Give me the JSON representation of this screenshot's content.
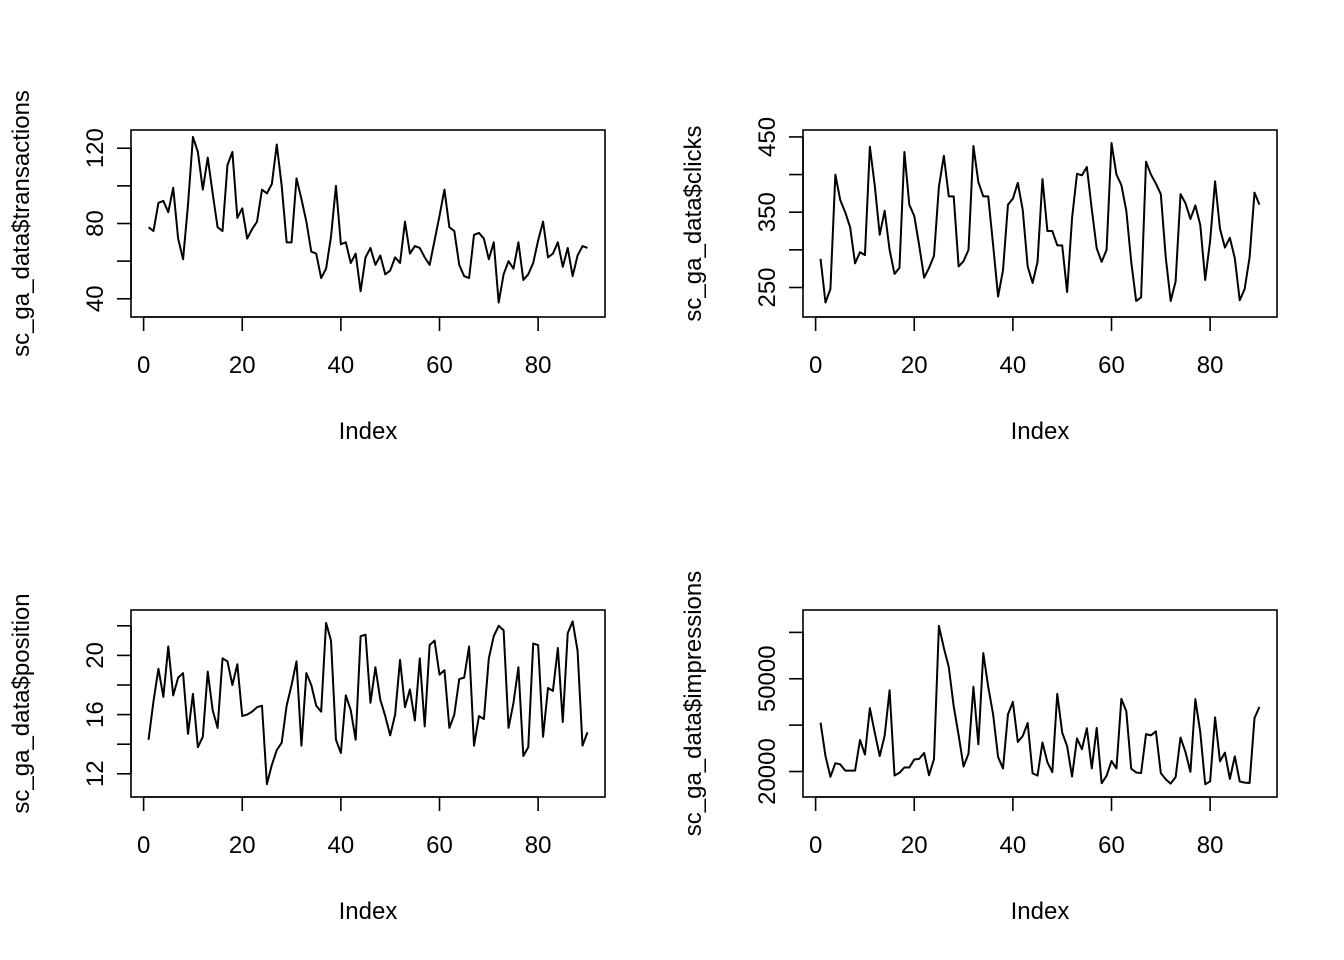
{
  "figure": {
    "layout": "2x2"
  },
  "chart_data": [
    {
      "type": "line",
      "title": "",
      "xlabel": "Index",
      "ylabel": "sc_ga_data$transactions",
      "xlim": [
        1,
        90
      ],
      "ylim": [
        34,
        126
      ],
      "xticks": [
        0,
        20,
        40,
        60,
        80
      ],
      "yticks": [
        40,
        80,
        120
      ],
      "yminor": [
        60,
        100
      ],
      "grid": false,
      "values": [
        78,
        76,
        91,
        92,
        86,
        99,
        72,
        61,
        90,
        126,
        118,
        98,
        115,
        96,
        78,
        76,
        111,
        118,
        83,
        88,
        72,
        77,
        81,
        98,
        96,
        101,
        122,
        100,
        70,
        70,
        104,
        93,
        81,
        65,
        64,
        51,
        56,
        73,
        100,
        69,
        70,
        59,
        64,
        44,
        62,
        67,
        58,
        63,
        53,
        55,
        62,
        59,
        81,
        64,
        68,
        67,
        62,
        58,
        71,
        84,
        98,
        78,
        76,
        58,
        52,
        51,
        74,
        75,
        72,
        61,
        70,
        38,
        53,
        60,
        56,
        70,
        50,
        53,
        59,
        71,
        81,
        62,
        64,
        70,
        57,
        67,
        52,
        63,
        68,
        67
      ]
    },
    {
      "type": "line",
      "title": "",
      "xlabel": "Index",
      "ylabel": "sc_ga_data$clicks",
      "xlim": [
        1,
        90
      ],
      "ylim": [
        220,
        450
      ],
      "xticks": [
        0,
        20,
        40,
        60,
        80
      ],
      "yticks": [
        250,
        350,
        450
      ],
      "yminor": [
        300,
        400
      ],
      "grid": false,
      "values": [
        288,
        230,
        248,
        400,
        366,
        350,
        330,
        282,
        297,
        293,
        437,
        385,
        320,
        352,
        300,
        268,
        276,
        430,
        360,
        345,
        306,
        263,
        276,
        292,
        384,
        425,
        371,
        371,
        278,
        285,
        300,
        438,
        390,
        371,
        371,
        306,
        238,
        273,
        360,
        368,
        389,
        353,
        278,
        256,
        284,
        394,
        325,
        325,
        306,
        306,
        244,
        342,
        401,
        399,
        410,
        354,
        302,
        284,
        300,
        442,
        400,
        386,
        352,
        284,
        232,
        237,
        417,
        400,
        388,
        374,
        290,
        232,
        258,
        374,
        362,
        341,
        359,
        333,
        260,
        312,
        391,
        328,
        303,
        316,
        289,
        233,
        248,
        290,
        376,
        360
      ]
    },
    {
      "type": "line",
      "title": "",
      "xlabel": "Index",
      "ylabel": "sc_ga_data$position",
      "xlim": [
        1,
        90
      ],
      "ylim": [
        10.9,
        22.6
      ],
      "xticks": [
        0,
        20,
        40,
        60,
        80
      ],
      "yticks": [
        12,
        16,
        20
      ],
      "yminor": [
        14,
        18,
        22
      ],
      "grid": false,
      "values": [
        14.3,
        16.9,
        19.1,
        17.2,
        20.6,
        17.3,
        18.5,
        18.8,
        14.7,
        17.4,
        13.8,
        14.5,
        18.9,
        16.3,
        15.1,
        19.8,
        19.6,
        18.0,
        19.4,
        15.9,
        16.0,
        16.2,
        16.5,
        16.6,
        11.3,
        12.6,
        13.6,
        14.1,
        16.6,
        18.0,
        19.6,
        13.9,
        18.8,
        18.0,
        16.6,
        16.2,
        22.2,
        21.0,
        14.3,
        13.4,
        17.3,
        16.3,
        14.3,
        21.3,
        21.4,
        16.8,
        19.2,
        17.0,
        15.9,
        14.6,
        16.0,
        19.7,
        16.5,
        17.7,
        15.6,
        19.8,
        15.2,
        20.7,
        21.0,
        18.7,
        19.0,
        15.1,
        16.0,
        18.4,
        18.5,
        20.6,
        13.9,
        15.9,
        15.7,
        19.8,
        21.3,
        22.0,
        21.7,
        15.1,
        16.8,
        19.2,
        13.2,
        13.8,
        20.8,
        20.7,
        14.5,
        17.8,
        17.6,
        20.5,
        15.5,
        21.5,
        22.3,
        20.3,
        13.9,
        14.8
      ]
    },
    {
      "type": "line",
      "title": "",
      "xlabel": "Index",
      "ylabel": "sc_ga_data$impressions",
      "xlim": [
        1,
        90
      ],
      "ylim": [
        14000,
        70000
      ],
      "xticks": [
        0,
        20,
        40,
        60,
        80
      ],
      "yticks": [
        20000,
        50000
      ],
      "yminor": [
        35000,
        65000
      ],
      "grid": false,
      "values": [
        35800,
        25000,
        18300,
        22700,
        22300,
        20300,
        20300,
        20300,
        30200,
        25500,
        40500,
        32500,
        25000,
        31600,
        46300,
        18700,
        19600,
        21300,
        21300,
        23900,
        24100,
        26000,
        18800,
        24000,
        67100,
        60000,
        53800,
        41100,
        31700,
        21600,
        25800,
        47400,
        28800,
        58300,
        47400,
        38400,
        24700,
        21000,
        38500,
        42500,
        29600,
        31500,
        35700,
        19400,
        18700,
        29400,
        23000,
        19800,
        45100,
        32600,
        28200,
        18400,
        30700,
        27200,
        34000,
        21000,
        34100,
        16200,
        18600,
        23400,
        21000,
        43500,
        39500,
        20900,
        19700,
        19500,
        32100,
        31700,
        33000,
        19500,
        17500,
        16100,
        18200,
        31000,
        26300,
        19900,
        43400,
        32700,
        15900,
        16800,
        37500,
        23300,
        26100,
        17600,
        24900,
        16800,
        16400,
        16300,
        37300,
        40900
      ]
    }
  ]
}
